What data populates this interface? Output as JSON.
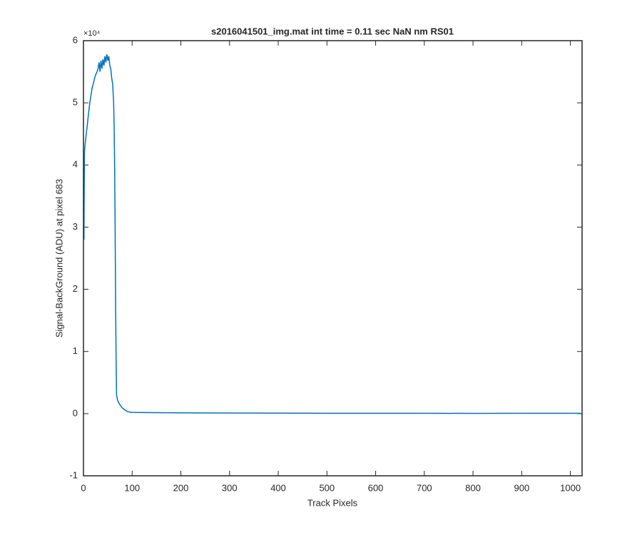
{
  "chart_data": {
    "type": "line",
    "title": "s2016041501_img.mat int time = 0.11 sec  NaN nm RS01",
    "x_label": "Track Pixels",
    "y_label": "Signal-BackGround (ADU) at pixel 683",
    "y_multiplier": "×10⁴",
    "xlim": [
      0,
      1024
    ],
    "ylim": [
      -10000,
      60000
    ],
    "xticks": [
      0,
      100,
      200,
      300,
      400,
      500,
      600,
      700,
      800,
      900,
      1000
    ],
    "yticks": [
      {
        "value": -10000,
        "label": "-1"
      },
      {
        "value": 0,
        "label": "0"
      },
      {
        "value": 10000,
        "label": "1"
      },
      {
        "value": 20000,
        "label": "2"
      },
      {
        "value": 30000,
        "label": "3"
      },
      {
        "value": 40000,
        "label": "4"
      },
      {
        "value": 50000,
        "label": "5"
      },
      {
        "value": 60000,
        "label": "6"
      }
    ],
    "series": [
      {
        "color": "#0072bd",
        "x": [
          1,
          2,
          3,
          5,
          8,
          10,
          13,
          15,
          18,
          20,
          23,
          25,
          28,
          30,
          32,
          34,
          36,
          38,
          40,
          42,
          44,
          46,
          48,
          50,
          52,
          54,
          56,
          58,
          60,
          62,
          63,
          64,
          65,
          66,
          67,
          68,
          70,
          72,
          75,
          80,
          85,
          90,
          95,
          100,
          150,
          200,
          300,
          400,
          500,
          600,
          700,
          800,
          900,
          1000,
          1020,
          1024
        ],
        "values": [
          28000,
          42000,
          43000,
          44500,
          46500,
          48000,
          50000,
          51000,
          52500,
          53000,
          54000,
          54500,
          55000,
          55500,
          56500,
          55000,
          56800,
          55500,
          57000,
          56000,
          57500,
          56500,
          57800,
          56800,
          57500,
          56000,
          55500,
          54000,
          53000,
          50000,
          46000,
          40000,
          30000,
          18000,
          9000,
          3000,
          2200,
          1800,
          1400,
          900,
          600,
          350,
          250,
          200,
          150,
          120,
          100,
          80,
          60,
          50,
          60,
          40,
          50,
          50,
          50,
          -50
        ]
      }
    ]
  }
}
